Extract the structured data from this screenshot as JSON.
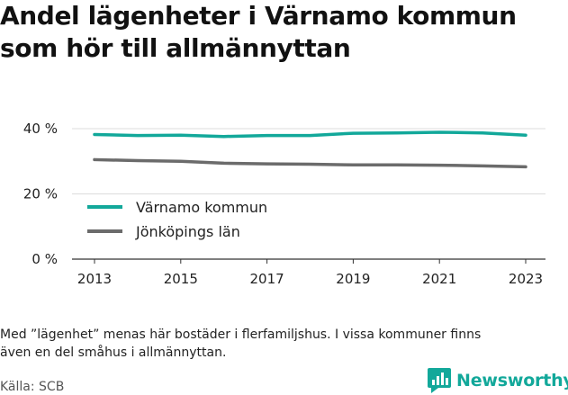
{
  "title_lines": [
    "Andel lägenheter i Värnamo kommun",
    "som hör till allmännyttan"
  ],
  "note_lines": [
    "Med ”lägenhet” menas här bostäder i flerfamiljshus. I vissa kommuner finns",
    "även en del småhus i allmännyttan."
  ],
  "source": "Källa: SCB",
  "brand": {
    "name": "Newsworthy",
    "logo_icon": "newsworthy-logo-icon",
    "color": "#12a89a"
  },
  "chart_data": {
    "type": "line",
    "x": [
      2013,
      2014,
      2015,
      2016,
      2017,
      2018,
      2019,
      2020,
      2021,
      2022,
      2023
    ],
    "x_ticks": [
      2013,
      2015,
      2017,
      2019,
      2021,
      2023
    ],
    "y_ticks": [
      {
        "value": 0,
        "label": "0 %"
      },
      {
        "value": 20,
        "label": "20 %"
      },
      {
        "value": 40,
        "label": "40 %"
      }
    ],
    "ylim": [
      0,
      40
    ],
    "grid": true,
    "legend_position": "bottom-left",
    "series": [
      {
        "name": "Värnamo kommun",
        "color": "#12a89a",
        "values": [
          38.2,
          37.9,
          38.0,
          37.6,
          37.9,
          37.9,
          38.6,
          38.7,
          38.9,
          38.7,
          38.0
        ]
      },
      {
        "name": "Jönköpings län",
        "color": "#6b6b6b",
        "values": [
          30.5,
          30.2,
          30.0,
          29.4,
          29.2,
          29.1,
          28.9,
          28.9,
          28.8,
          28.6,
          28.3
        ]
      }
    ]
  }
}
